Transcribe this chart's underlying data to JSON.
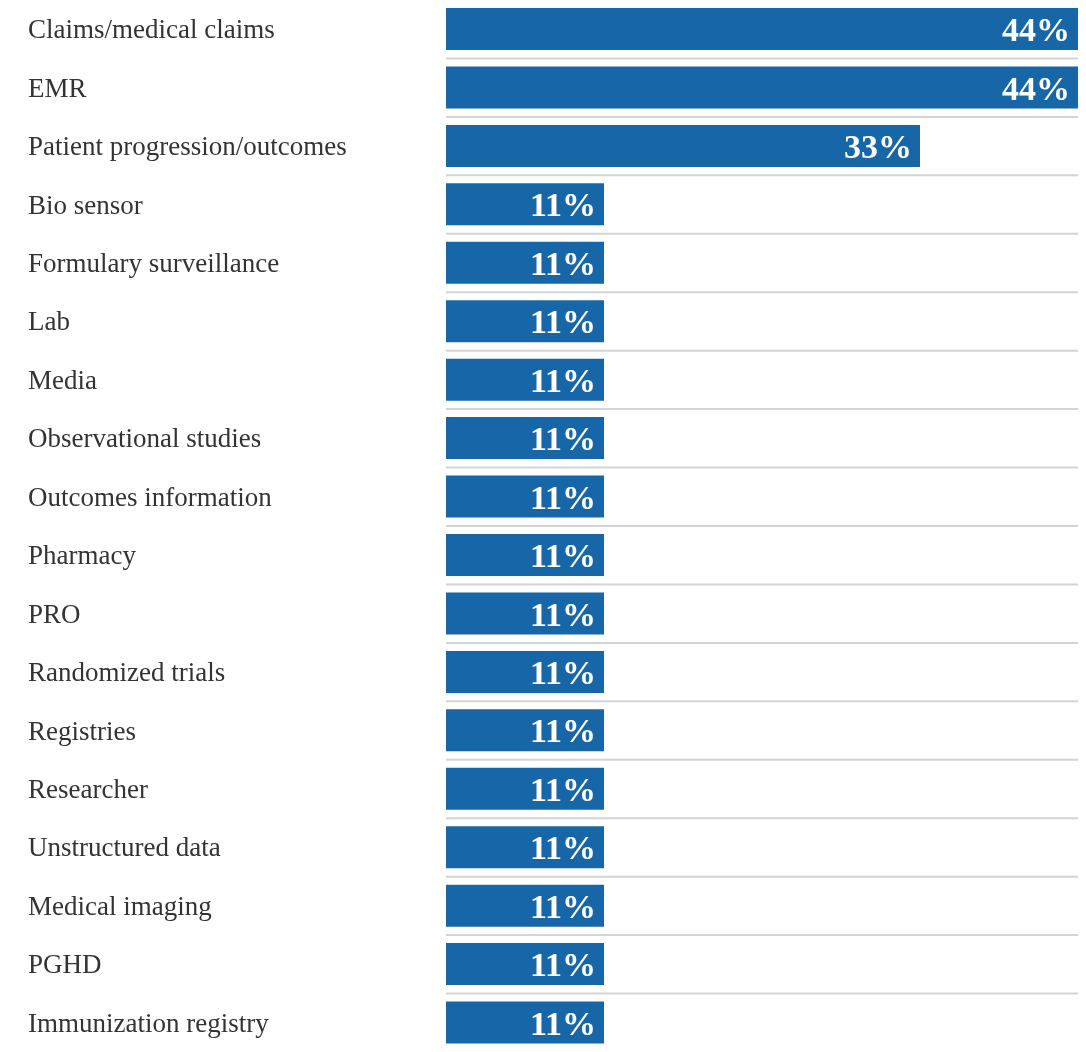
{
  "chart_data": {
    "type": "bar",
    "orientation": "horizontal",
    "categories": [
      "Claims/medical claims",
      "EMR",
      "Patient progression/outcomes",
      "Bio sensor",
      "Formulary surveillance",
      "Lab",
      "Media",
      "Observational studies",
      "Outcomes information",
      "Pharmacy",
      "PRO",
      "Randomized trials",
      "Registries",
      "Researcher",
      "Unstructured data",
      "Medical imaging",
      "PGHD",
      "Immunization registry"
    ],
    "values": [
      44,
      44,
      33,
      11,
      11,
      11,
      11,
      11,
      11,
      11,
      11,
      11,
      11,
      11,
      11,
      11,
      11,
      11
    ],
    "value_labels": [
      "44%",
      "44%",
      "33%",
      "11%",
      "11%",
      "11%",
      "11%",
      "11%",
      "11%",
      "11%",
      "11%",
      "11%",
      "11%",
      "11%",
      "11%",
      "11%",
      "11%",
      "11%"
    ],
    "color": "#1767a8",
    "xlim": [
      0,
      44
    ],
    "tick_labels": "y",
    "grid": "y"
  }
}
